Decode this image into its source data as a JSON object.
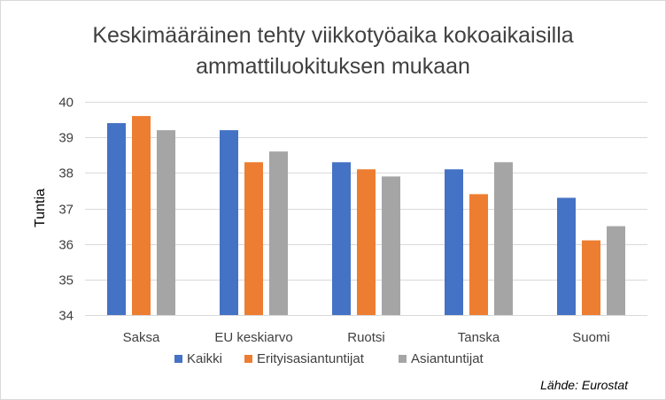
{
  "chart_data": {
    "type": "bar",
    "title_lines": [
      "Keskimääräinen tehty viikkotyöaika kokoaikaisilla",
      "ammattiluokituksen mukaan"
    ],
    "xlabel": "",
    "ylabel": "Tuntia",
    "ylim": [
      34,
      40
    ],
    "yticks": [
      34,
      35,
      36,
      37,
      38,
      39,
      40
    ],
    "grid": true,
    "legend_position": "bottom",
    "categories": [
      "Saksa",
      "EU keskiarvo",
      "Ruotsi",
      "Tanska",
      "Suomi"
    ],
    "series": [
      {
        "name": "Kaikki",
        "color": "#4472c4",
        "values": [
          39.4,
          39.2,
          38.3,
          38.1,
          37.3
        ]
      },
      {
        "name": "Erityisasiantuntijat",
        "color": "#ed7d31",
        "values": [
          39.6,
          38.3,
          38.1,
          37.4,
          36.1
        ]
      },
      {
        "name": "Asiantuntijat",
        "color": "#a5a5a5",
        "values": [
          39.2,
          38.6,
          37.9,
          38.3,
          36.5
        ]
      }
    ],
    "source_note": "Lähde: Eurostat"
  }
}
